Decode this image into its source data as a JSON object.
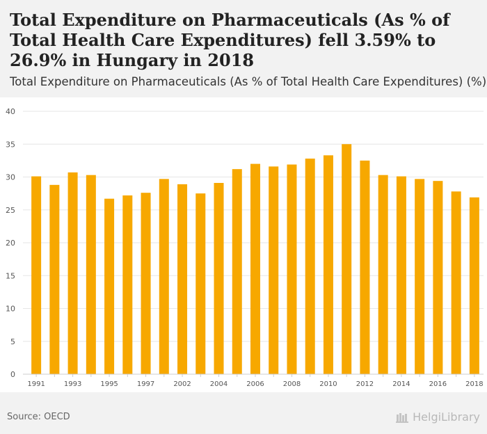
{
  "title": "Total Expenditure on Pharmaceuticals (As % of Total Health Care Expenditures) fell 3.59% to 26.9% in Hungary in 2018",
  "subtitle": "Total Expenditure on Pharmaceuticals (As % of Total Health Care Expenditures) (%)",
  "source": "Source: OECD",
  "logo_text": "HelgiLibrary",
  "colors": {
    "bar": "#f7a800",
    "grid": "#e6e6e6",
    "axis_text": "#555555",
    "background": "#f2f2f2"
  },
  "chart_data": {
    "type": "bar",
    "title": "Total Expenditure on Pharmaceuticals (As % of Total Health Care Expenditures) (%)",
    "xlabel": "",
    "ylabel": "",
    "ylim": [
      0,
      40
    ],
    "yticks": [
      0,
      5,
      10,
      15,
      20,
      25,
      30,
      35,
      40
    ],
    "grid": true,
    "categories": [
      "1991",
      "1992",
      "1993",
      "1994",
      "1995",
      "1996",
      "1997",
      "1998",
      "2002",
      "2003",
      "2004",
      "2005",
      "2006",
      "2007",
      "2008",
      "2009",
      "2010",
      "2011",
      "2012",
      "2013",
      "2014",
      "2015",
      "2016",
      "2017",
      "2018"
    ],
    "xtick_labels": [
      "1991",
      "1993",
      "1995",
      "1997",
      "2002",
      "2004",
      "2006",
      "2008",
      "2010",
      "2012",
      "2014",
      "2016",
      "2018"
    ],
    "values": [
      30.1,
      28.8,
      30.7,
      30.3,
      26.7,
      27.2,
      27.6,
      29.7,
      28.9,
      27.5,
      29.1,
      31.2,
      32.0,
      31.6,
      31.9,
      32.8,
      33.3,
      35.0,
      32.5,
      30.3,
      30.1,
      29.7,
      29.4,
      27.8,
      26.9
    ]
  }
}
